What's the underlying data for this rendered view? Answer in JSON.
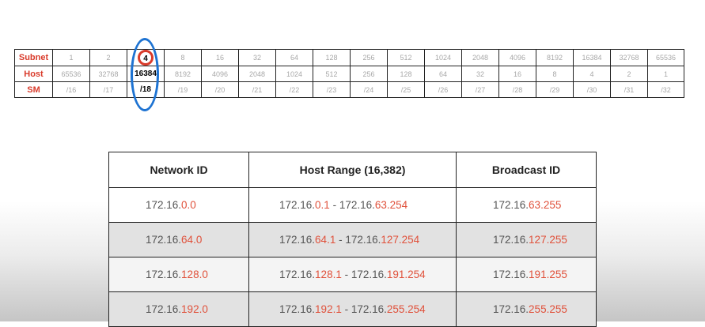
{
  "subnet_table": {
    "row_labels": [
      "Subnet",
      "Host",
      "SM"
    ],
    "subnet": [
      "1",
      "2",
      "4",
      "8",
      "16",
      "32",
      "64",
      "128",
      "256",
      "512",
      "1024",
      "2048",
      "4096",
      "8192",
      "16384",
      "32768",
      "65536"
    ],
    "host": [
      "65536",
      "32768",
      "16384",
      "8192",
      "4096",
      "2048",
      "1024",
      "512",
      "256",
      "128",
      "64",
      "32",
      "16",
      "8",
      "4",
      "2",
      "1"
    ],
    "sm": [
      "/16",
      "/17",
      "/18",
      "/19",
      "/20",
      "/21",
      "/22",
      "/23",
      "/24",
      "/25",
      "/26",
      "/27",
      "/28",
      "/29",
      "/30",
      "/31",
      "/32"
    ],
    "highlight_index": 2,
    "circle_color": "#d93b2b",
    "ellipse_color": "#1e73d2"
  },
  "ranges_table": {
    "headers": [
      "Network ID",
      "Host Range (16,382)",
      "Broadcast ID"
    ],
    "rows": [
      {
        "network": {
          "prefix": "172.16.",
          "octet": "0.0"
        },
        "range_start": {
          "prefix": "172.16.",
          "octet": "0.1"
        },
        "range_sep": " - ",
        "range_end": {
          "prefix": "172.16.",
          "octet": "63.254"
        },
        "broadcast": {
          "prefix": "172.16.",
          "octet": "63.255"
        }
      },
      {
        "network": {
          "prefix": "172.16.",
          "octet": "64.0"
        },
        "range_start": {
          "prefix": "172.16.",
          "octet": "64.1"
        },
        "range_sep": " - ",
        "range_end": {
          "prefix": "172.16.",
          "octet": "127.254"
        },
        "broadcast": {
          "prefix": "172.16.",
          "octet": "127.255"
        }
      },
      {
        "network": {
          "prefix": "172.16.",
          "octet": "128.0"
        },
        "range_start": {
          "prefix": "172.16.",
          "octet": "128.1"
        },
        "range_sep": " - ",
        "range_end": {
          "prefix": "172.16.",
          "octet": "191.254"
        },
        "broadcast": {
          "prefix": "172.16.",
          "octet": "191.255"
        }
      },
      {
        "network": {
          "prefix": "172.16.",
          "octet": "192.0"
        },
        "range_start": {
          "prefix": "172.16.",
          "octet": "192.1"
        },
        "range_sep": " - ",
        "range_end": {
          "prefix": "172.16.",
          "octet": "255.254"
        },
        "broadcast": {
          "prefix": "172.16.",
          "octet": "255.255"
        }
      }
    ],
    "accent_color": "#e0513b"
  }
}
